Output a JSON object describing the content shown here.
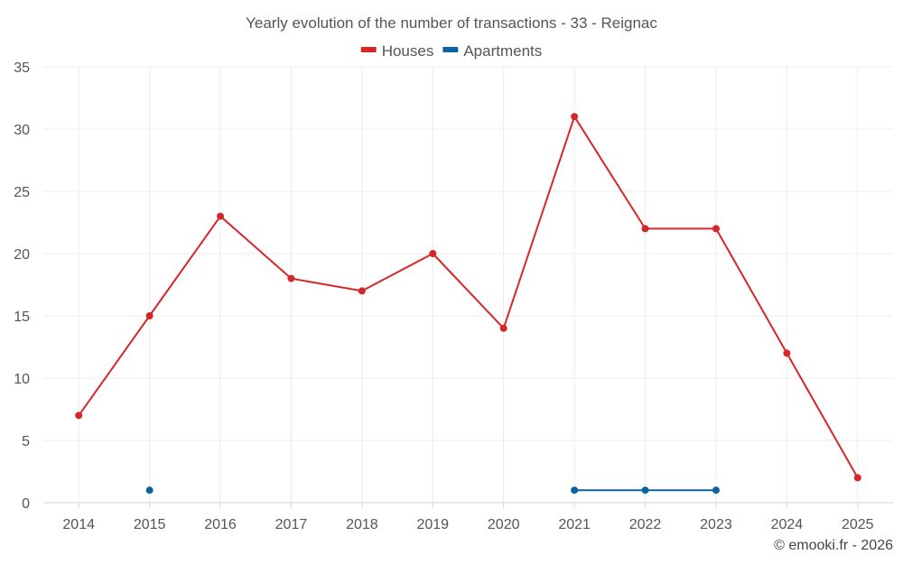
{
  "chart_data": {
    "type": "line",
    "title": "Yearly evolution of the number of transactions - 33 - Reignac",
    "xlabel": "",
    "ylabel": "",
    "categories": [
      "2014",
      "2015",
      "2016",
      "2017",
      "2018",
      "2019",
      "2020",
      "2021",
      "2022",
      "2023",
      "2024",
      "2025"
    ],
    "ylim": [
      0,
      35
    ],
    "yticks": [
      0,
      5,
      10,
      15,
      20,
      25,
      30,
      35
    ],
    "grid": true,
    "legend_position": "top-center",
    "series": [
      {
        "name": "Houses",
        "color": "#d62728",
        "values": [
          7,
          15,
          23,
          18,
          17,
          20,
          14,
          31,
          22,
          22,
          12,
          2
        ]
      },
      {
        "name": "Apartments",
        "color": "#0b63a0",
        "values": [
          null,
          1,
          null,
          null,
          null,
          null,
          null,
          1,
          1,
          1,
          null,
          null
        ]
      }
    ],
    "credit": "© emooki.fr - 2026"
  }
}
